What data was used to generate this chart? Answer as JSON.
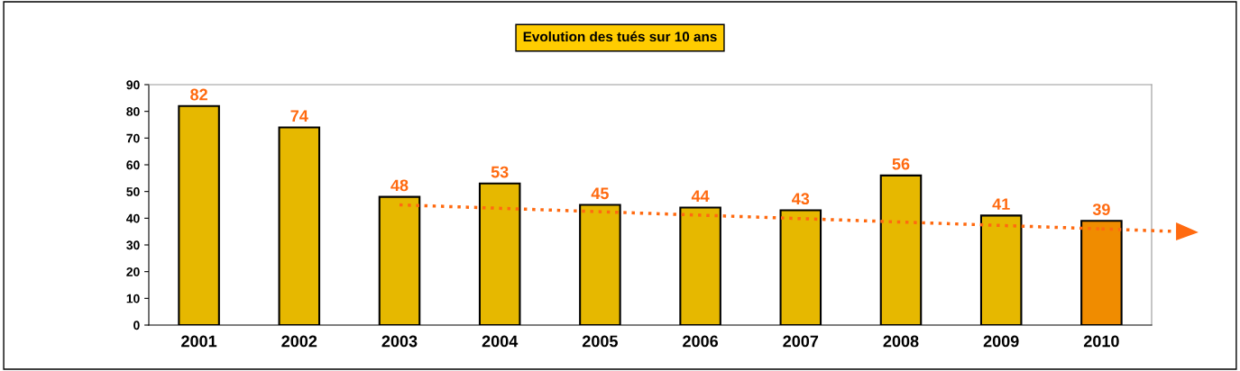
{
  "chart_data": {
    "type": "bar",
    "title": "Evolution des tués sur 10 ans",
    "categories": [
      "2001",
      "2002",
      "2003",
      "2004",
      "2005",
      "2006",
      "2007",
      "2008",
      "2009",
      "2010"
    ],
    "series": [
      {
        "values": [
          82,
          74,
          48,
          53,
          45,
          44,
          43,
          56,
          41,
          39
        ],
        "colors": [
          "#e6b800",
          "#e6b800",
          "#e6b800",
          "#e6b800",
          "#e6b800",
          "#e6b800",
          "#e6b800",
          "#e6b800",
          "#e6b800",
          "#f08c00"
        ],
        "value_labels": [
          "82",
          "74",
          "48",
          "53",
          "45",
          "44",
          "43",
          "56",
          "41",
          "39"
        ]
      },
      {
        "type": "line",
        "values": [
          null,
          null,
          45,
          null,
          null,
          null,
          null,
          null,
          null,
          36
        ],
        "color": "#ff6a10",
        "line_style": "dotted"
      }
    ],
    "ylim": [
      0,
      90
    ],
    "yticks": [
      0,
      10,
      20,
      30,
      40,
      50,
      60,
      70,
      80,
      90
    ],
    "grid": false
  }
}
